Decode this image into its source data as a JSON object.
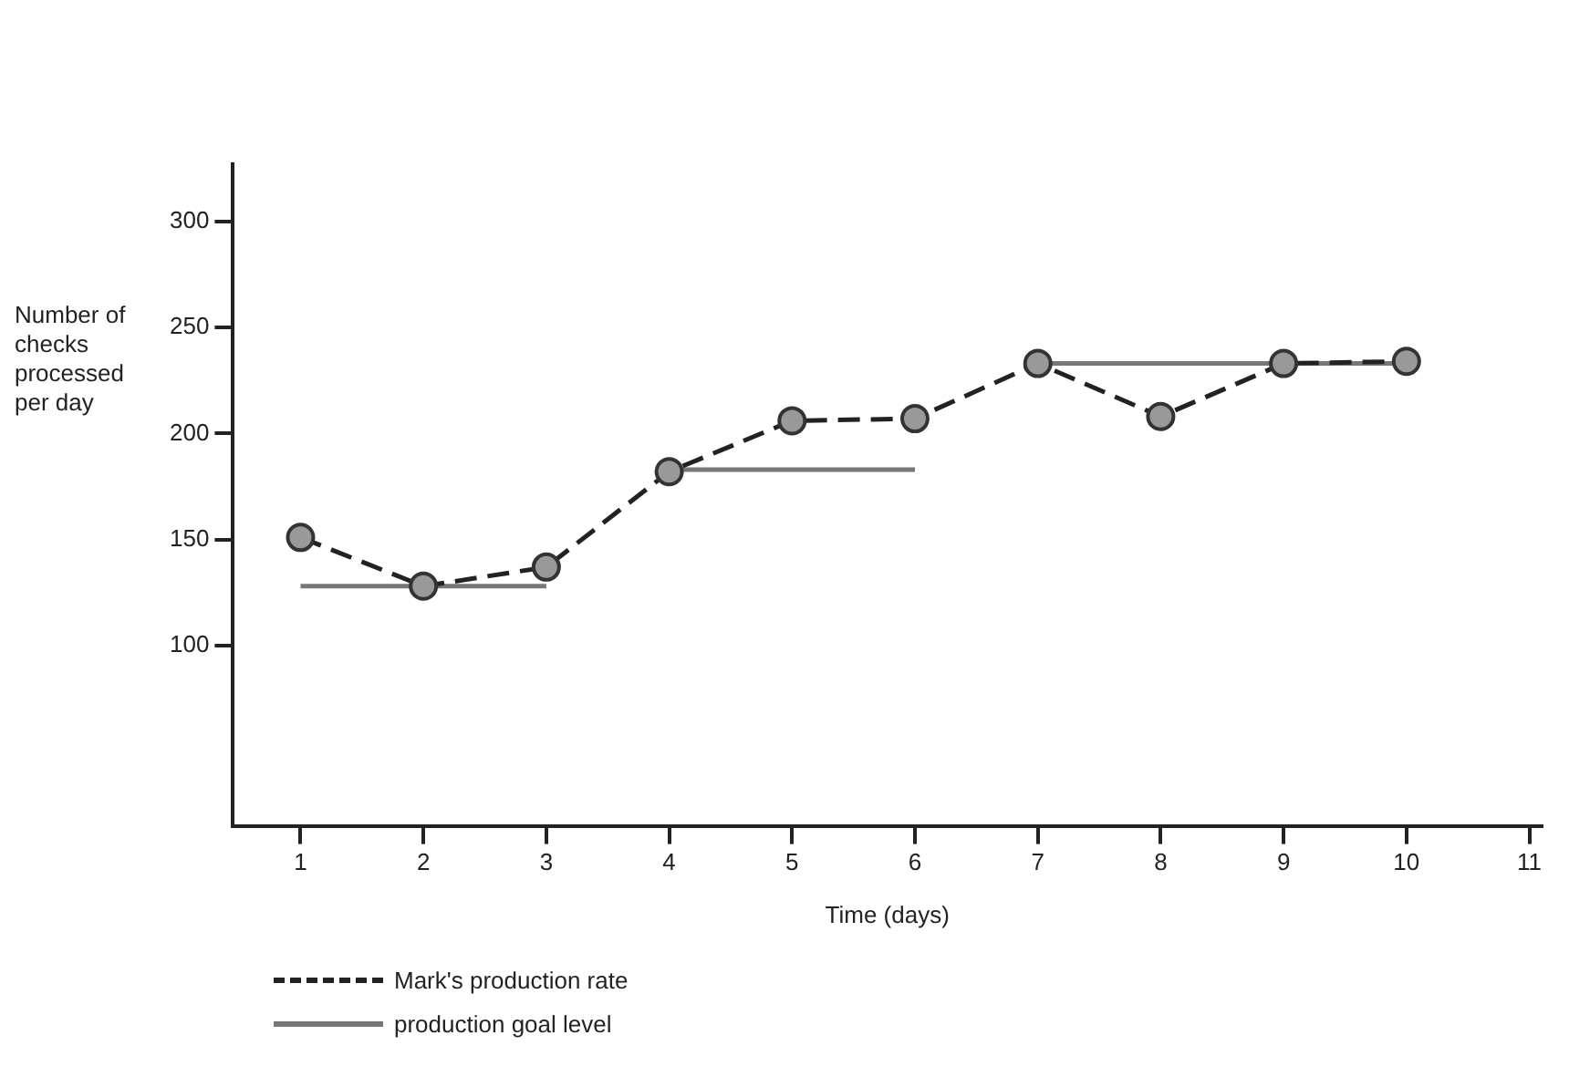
{
  "chart_data": {
    "type": "line",
    "xlabel": "Time (days)",
    "ylabel": "Number of checks processed per day",
    "x": [
      1,
      2,
      3,
      4,
      5,
      6,
      7,
      8,
      9,
      10
    ],
    "xlim": [
      0.45,
      11.1
    ],
    "xticks": [
      1,
      2,
      3,
      4,
      5,
      6,
      7,
      8,
      9,
      10,
      11
    ],
    "ylim": [
      15,
      327
    ],
    "yticks": [
      100,
      150,
      200,
      250,
      300
    ],
    "grid": false,
    "legend": "bottom left",
    "series": [
      {
        "name": "Mark's production rate",
        "color": "#222222",
        "line_style": "dashed",
        "marker": "circle",
        "values": [
          151,
          128,
          137,
          182,
          206,
          207,
          233,
          208,
          233,
          234
        ]
      },
      {
        "name": "production goal level",
        "color": "#777777",
        "line_style": "solid",
        "marker": "none",
        "x": [
          1,
          3,
          null,
          4,
          6,
          null,
          7,
          10
        ],
        "values": [
          128,
          128,
          null,
          183,
          183,
          null,
          233,
          233
        ]
      }
    ]
  }
}
